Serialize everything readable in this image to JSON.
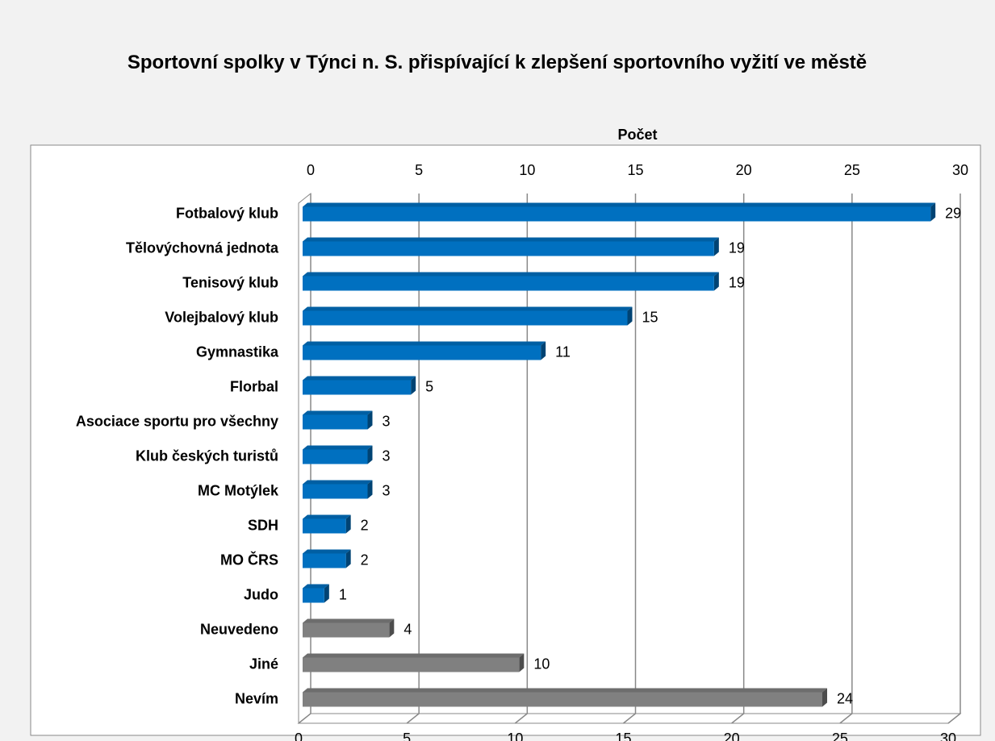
{
  "chart_data": {
    "type": "bar",
    "orientation": "horizontal",
    "title": "Sportovní spolky v Týnci n. S.  přispívající k zlepšení sportovního vyžití ve městě",
    "xlabel": "Počet",
    "categories": [
      "Fotbalový klub",
      "Tělovýchovná jednota",
      "Tenisový klub",
      "Volejbalový klub",
      "Gymnastika",
      "Florbal",
      "Asociace sportu pro všechny",
      "Klub českých turistů",
      "MC Motýlek",
      "SDH",
      "MO ČRS",
      "Judo",
      "Neuvedeno",
      "Jiné",
      "Nevím"
    ],
    "values": [
      29,
      19,
      19,
      15,
      11,
      5,
      3,
      3,
      3,
      2,
      2,
      1,
      4,
      10,
      24
    ],
    "colors": [
      "#0070c0",
      "#0070c0",
      "#0070c0",
      "#0070c0",
      "#0070c0",
      "#0070c0",
      "#0070c0",
      "#0070c0",
      "#0070c0",
      "#0070c0",
      "#0070c0",
      "#0070c0",
      "#808080",
      "#808080",
      "#808080"
    ],
    "xlim": [
      0,
      30
    ],
    "xticks": [
      0,
      5,
      10,
      15,
      20,
      25,
      30
    ],
    "grid": true
  }
}
